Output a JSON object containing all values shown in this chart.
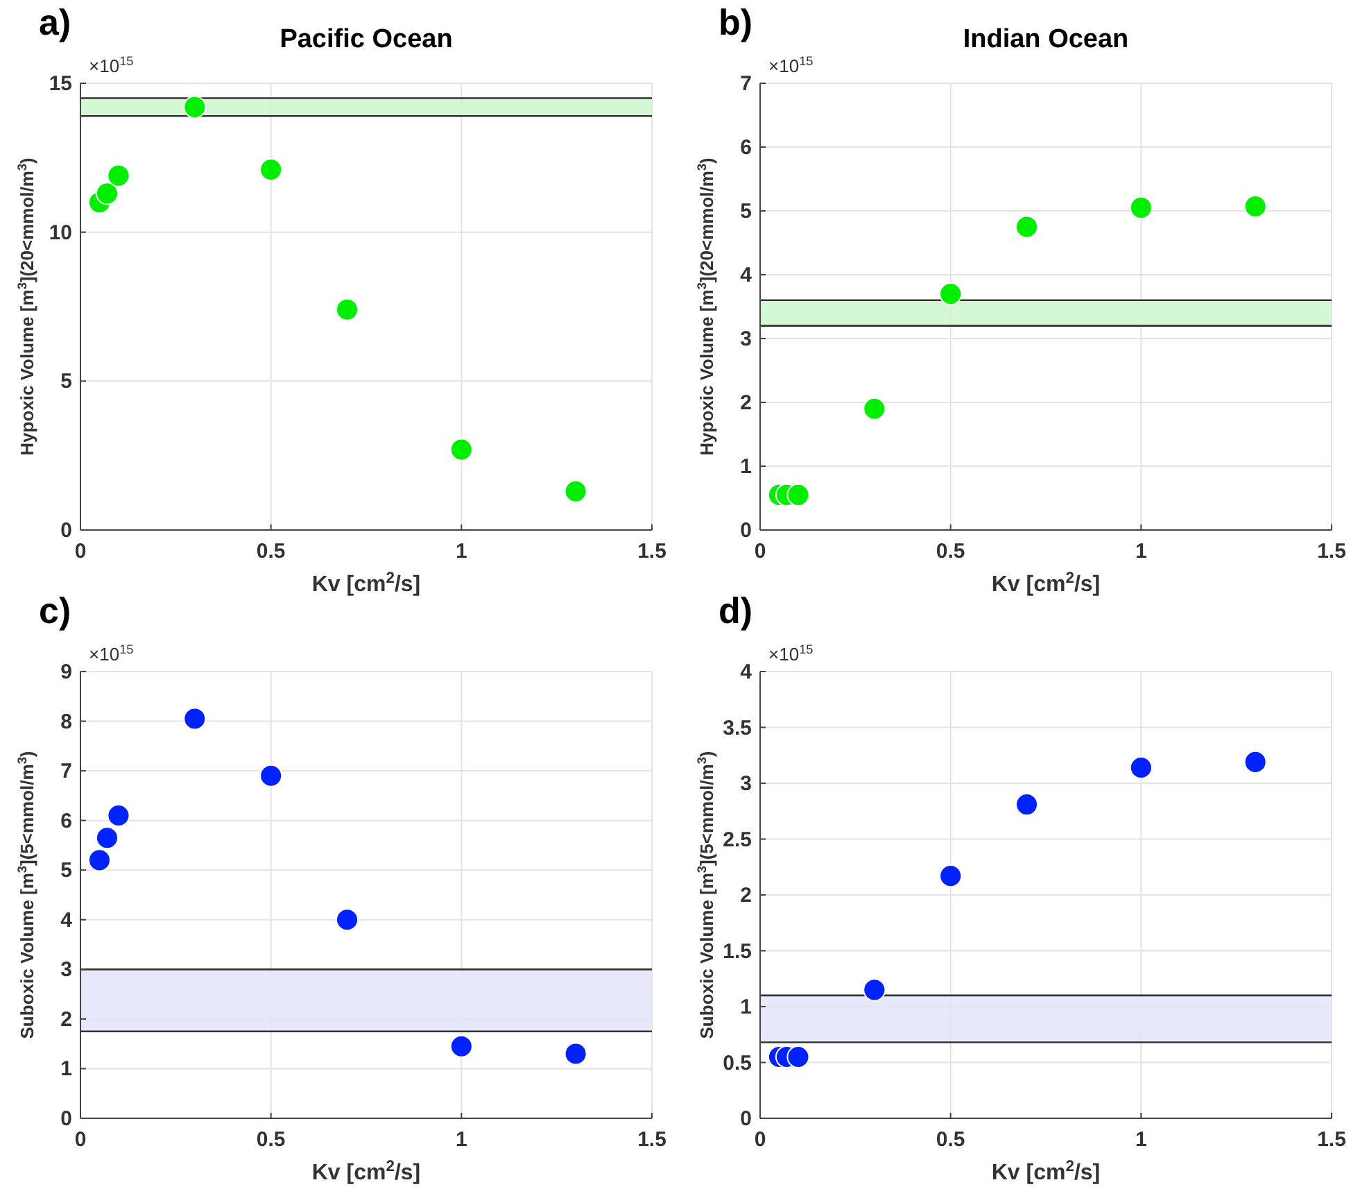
{
  "chart_data": [
    {
      "type": "scatter",
      "title": "Pacific Ocean",
      "xlabel": "Kv [cm$^{2}$/s]",
      "ylabel": "Hypoxic Volume [m$^{3}$](20<mmol/m$^{3}$)",
      "annotations": [
        "a)",
        "×10$^{15}$"
      ],
      "x": [
        0.05,
        0.07,
        0.1,
        0.3,
        0.5,
        0.7,
        1,
        1.3
      ],
      "series": [
        {
          "color": "#00ee00",
          "values": [
            11.0,
            11.3,
            11.9,
            14.2,
            12.1,
            7.4,
            2.7,
            1.3
          ]
        }
      ],
      "bands": [
        {
          "axis": "y",
          "from": 13.9,
          "to": 14.5,
          "color": "#ccf7cc"
        }
      ],
      "ref_lines": [
        {
          "axis": "y",
          "value": 13.9,
          "color": "#333333"
        },
        {
          "axis": "y",
          "value": 14.5,
          "color": "#333333"
        }
      ],
      "xlim": [
        0,
        1.5
      ],
      "xticks": [
        0,
        0.5,
        1,
        1.5
      ],
      "ylim": [
        0,
        15
      ],
      "yticks": [
        0,
        5,
        10,
        15
      ],
      "grid": true,
      "marker": "circle"
    },
    {
      "type": "scatter",
      "title": "Indian Ocean",
      "xlabel": "Kv [cm$^{2}$/s]",
      "ylabel": "Hypoxic Volume [m$^{3}$](20<mmol/m$^{3}$)",
      "annotations": [
        "b)",
        "×10$^{15}$"
      ],
      "x": [
        0.05,
        0.07,
        0.1,
        0.3,
        0.5,
        0.7,
        1,
        1.3
      ],
      "series": [
        {
          "color": "#00ee00",
          "values": [
            0.55,
            0.55,
            0.55,
            1.9,
            3.7,
            4.75,
            5.05,
            5.07
          ]
        }
      ],
      "bands": [
        {
          "axis": "y",
          "from": 3.2,
          "to": 3.6,
          "color": "#ccf7cc"
        }
      ],
      "ref_lines": [
        {
          "axis": "y",
          "value": 3.2,
          "color": "#333333"
        },
        {
          "axis": "y",
          "value": 3.6,
          "color": "#333333"
        }
      ],
      "xlim": [
        0,
        1.5
      ],
      "xticks": [
        0,
        0.5,
        1,
        1.5
      ],
      "ylim": [
        0,
        7
      ],
      "yticks": [
        0,
        1,
        2,
        3,
        4,
        5,
        6,
        7
      ],
      "grid": true,
      "marker": "circle"
    },
    {
      "type": "scatter",
      "xlabel": "Kv [cm$^{2}$/s]",
      "ylabel": "Suboxic Volume [m$^{3}$](5<mmol/m$^{3}$)",
      "annotations": [
        "c)",
        "×10$^{15}$"
      ],
      "x": [
        0.05,
        0.07,
        0.1,
        0.3,
        0.5,
        0.7,
        1,
        1.3
      ],
      "series": [
        {
          "color": "#0022ff",
          "values": [
            5.2,
            5.65,
            6.1,
            8.05,
            6.9,
            4.0,
            1.45,
            1.3
          ]
        }
      ],
      "bands": [
        {
          "axis": "y",
          "from": 1.75,
          "to": 3.0,
          "color": "#e4e4fb"
        }
      ],
      "ref_lines": [
        {
          "axis": "y",
          "value": 1.75,
          "color": "#333333"
        },
        {
          "axis": "y",
          "value": 3.0,
          "color": "#333333"
        }
      ],
      "xlim": [
        0,
        1.5
      ],
      "xticks": [
        0,
        0.5,
        1,
        1.5
      ],
      "ylim": [
        0,
        9
      ],
      "yticks": [
        0,
        1,
        2,
        3,
        4,
        5,
        6,
        7,
        8,
        9
      ],
      "grid": true,
      "marker": "circle"
    },
    {
      "type": "scatter",
      "xlabel": "Kv [cm$^{2}$/s]",
      "ylabel": "Suboxic Volume [m$^{3}$](5<mmol/m$^{3}$)",
      "annotations": [
        "d)",
        "×10$^{15}$"
      ],
      "x": [
        0.05,
        0.07,
        0.1,
        0.3,
        0.5,
        0.7,
        1,
        1.3
      ],
      "series": [
        {
          "color": "#0022ff",
          "values": [
            0.55,
            0.55,
            0.55,
            1.15,
            2.17,
            2.81,
            3.14,
            3.19
          ]
        }
      ],
      "bands": [
        {
          "axis": "y",
          "from": 0.68,
          "to": 1.1,
          "color": "#e4e4fb"
        }
      ],
      "ref_lines": [
        {
          "axis": "y",
          "value": 0.68,
          "color": "#333333"
        },
        {
          "axis": "y",
          "value": 1.1,
          "color": "#333333"
        }
      ],
      "xlim": [
        0,
        1.5
      ],
      "xticks": [
        0,
        0.5,
        1,
        1.5
      ],
      "ylim": [
        0,
        4
      ],
      "yticks": [
        0,
        0.5,
        1,
        1.5,
        2,
        2.5,
        3,
        3.5,
        4
      ],
      "grid": true,
      "marker": "circle"
    }
  ]
}
